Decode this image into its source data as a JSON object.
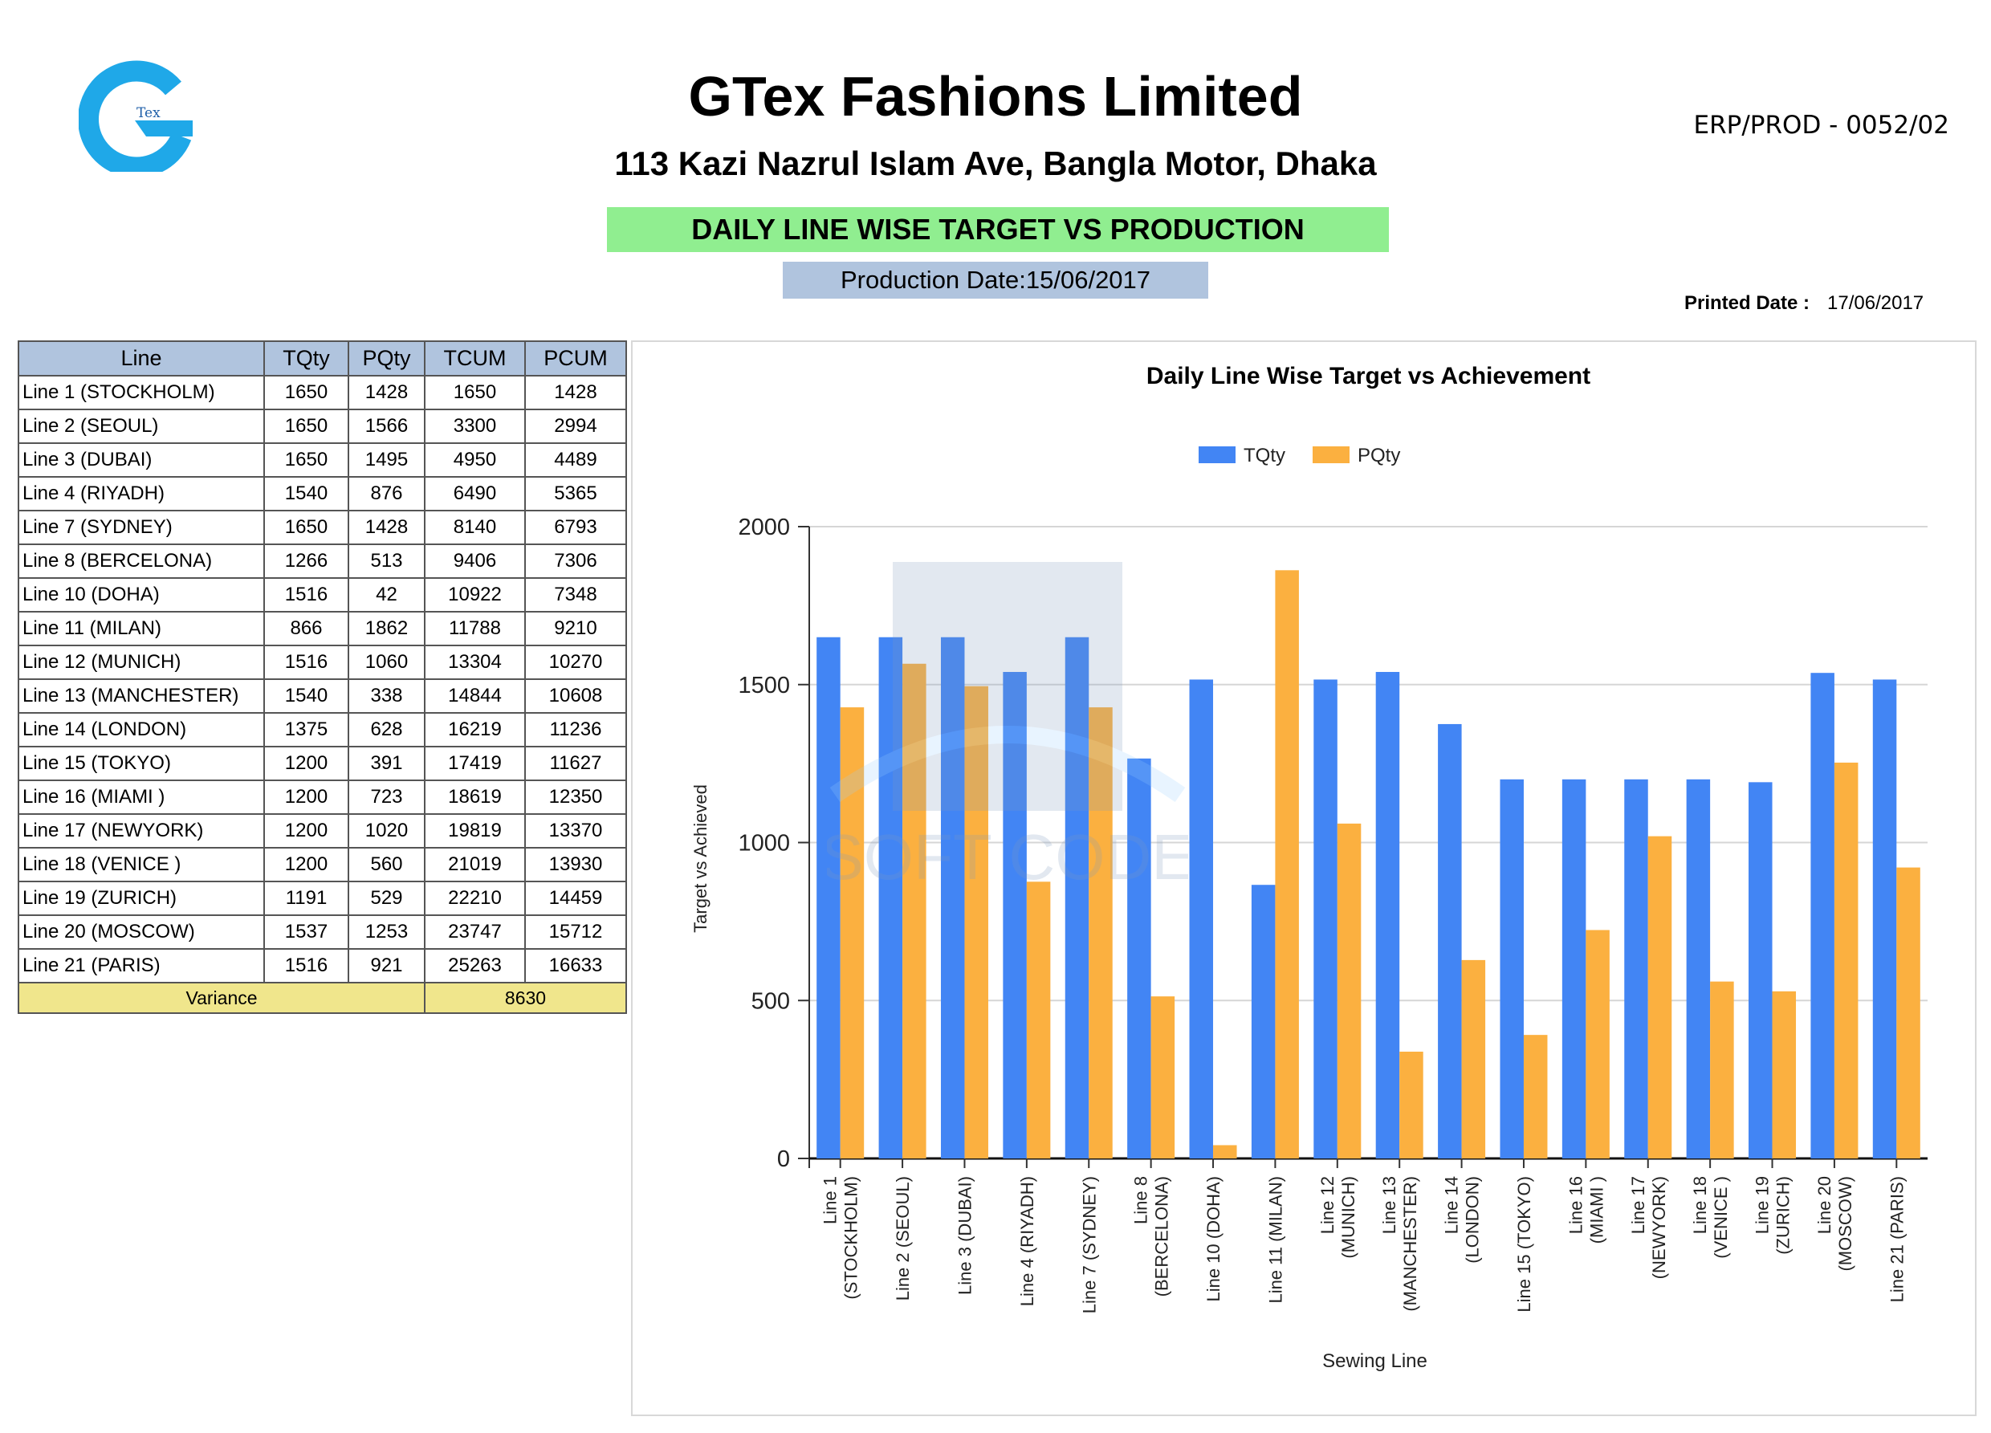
{
  "header": {
    "logo_text": "Tex",
    "company_name": "GTex Fashions Limited",
    "address": "113 Kazi Nazrul Islam Ave, Bangla Motor, Dhaka",
    "doc_code": "ERP/PROD - 0052/02",
    "report_title": "DAILY LINE WISE TARGET VS PRODUCTION",
    "production_date": "Production Date:15/06/2017",
    "printed_label": "Printed Date :",
    "printed_value": "17/06/2017"
  },
  "table": {
    "headers": [
      "Line",
      "TQty",
      "PQty",
      "TCUM",
      "PCUM"
    ],
    "rows": [
      [
        "Line 1 (STOCKHOLM)",
        "1650",
        "1428",
        "1650",
        "1428"
      ],
      [
        "Line 2 (SEOUL)",
        "1650",
        "1566",
        "3300",
        "2994"
      ],
      [
        "Line 3 (DUBAI)",
        "1650",
        "1495",
        "4950",
        "4489"
      ],
      [
        "Line 4 (RIYADH)",
        "1540",
        "876",
        "6490",
        "5365"
      ],
      [
        "Line 7 (SYDNEY)",
        "1650",
        "1428",
        "8140",
        "6793"
      ],
      [
        "Line 8 (BERCELONA)",
        "1266",
        "513",
        "9406",
        "7306"
      ],
      [
        "Line 10 (DOHA)",
        "1516",
        "42",
        "10922",
        "7348"
      ],
      [
        "Line 11 (MILAN)",
        "866",
        "1862",
        "11788",
        "9210"
      ],
      [
        "Line 12 (MUNICH)",
        "1516",
        "1060",
        "13304",
        "10270"
      ],
      [
        "Line 13 (MANCHESTER)",
        "1540",
        "338",
        "14844",
        "10608"
      ],
      [
        "Line 14 (LONDON)",
        "1375",
        "628",
        "16219",
        "11236"
      ],
      [
        "Line 15 (TOKYO)",
        "1200",
        "391",
        "17419",
        "11627"
      ],
      [
        "Line 16 (MIAMI )",
        "1200",
        "723",
        "18619",
        "12350"
      ],
      [
        "Line 17 (NEWYORK)",
        "1200",
        "1020",
        "19819",
        "13370"
      ],
      [
        "Line 18 (VENICE )",
        "1200",
        "560",
        "21019",
        "13930"
      ],
      [
        "Line 19 (ZURICH)",
        "1191",
        "529",
        "22210",
        "14459"
      ],
      [
        "Line 20 (MOSCOW)",
        "1537",
        "1253",
        "23747",
        "15712"
      ],
      [
        "Line 21 (PARIS)",
        "1516",
        "921",
        "25263",
        "16633"
      ]
    ],
    "variance_label": "Variance",
    "variance_value": "8630"
  },
  "watermark_text": "SOFT CODE",
  "chart_data": {
    "type": "bar",
    "title": "Daily Line Wise Target vs Achievement",
    "xlabel": "Sewing Line",
    "ylabel": "Target vs Achieved",
    "ylim": [
      0,
      2000
    ],
    "yticks": [
      0,
      500,
      1000,
      1500,
      2000
    ],
    "legend_position": "top-center",
    "grid": true,
    "categories": [
      [
        "Line 1",
        "(STOCKHOLM)"
      ],
      [
        "Line 2 (SEOUL)"
      ],
      [
        "Line 3 (DUBAI)"
      ],
      [
        "Line 4 (RIYADH)"
      ],
      [
        "Line 7 (SYDNEY)"
      ],
      [
        "Line 8",
        "(BERCELONA)"
      ],
      [
        "Line 10 (DOHA)"
      ],
      [
        "Line 11 (MILAN)"
      ],
      [
        "Line 12",
        "(MUNICH)"
      ],
      [
        "Line 13",
        "(MANCHESTER)"
      ],
      [
        "Line 14",
        "(LONDON)"
      ],
      [
        "Line 15 (TOKYO)"
      ],
      [
        "Line 16",
        "(MIAMI )"
      ],
      [
        "Line 17",
        "(NEWYORK)"
      ],
      [
        "Line 18",
        "(VENICE )"
      ],
      [
        "Line 19",
        "(ZURICH)"
      ],
      [
        "Line 20",
        "(MOSCOW)"
      ],
      [
        "Line 21 (PARIS)"
      ]
    ],
    "series": [
      {
        "name": "TQty",
        "color": "#4285f4",
        "values": [
          1650,
          1650,
          1650,
          1540,
          1650,
          1266,
          1516,
          866,
          1516,
          1540,
          1375,
          1200,
          1200,
          1200,
          1200,
          1191,
          1537,
          1516
        ]
      },
      {
        "name": "PQty",
        "color": "#fbb040",
        "values": [
          1428,
          1566,
          1495,
          876,
          1428,
          513,
          42,
          1862,
          1060,
          338,
          628,
          391,
          723,
          1020,
          560,
          529,
          1253,
          921
        ]
      }
    ]
  }
}
